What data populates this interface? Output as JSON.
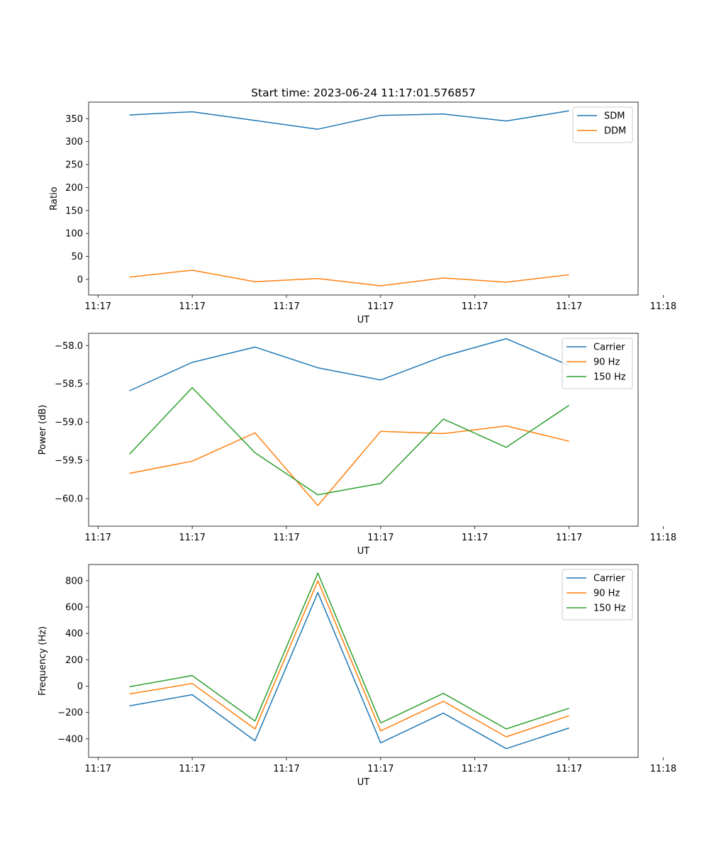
{
  "figure_title": "Start time: 2023-06-24 11:17:01.576857",
  "chart_data": [
    {
      "type": "line",
      "title": "Start time: 2023-06-24 11:17:01.576857",
      "xlabel": "UT",
      "ylabel": "Ratio",
      "x_tick_labels": [
        "11:17",
        "11:17",
        "11:17",
        "11:17",
        "11:17",
        "11:17",
        "11:18"
      ],
      "y_ticks": [
        0,
        50,
        100,
        150,
        200,
        250,
        300,
        350
      ],
      "ylim": [
        -34,
        386
      ],
      "xlim": [
        -0.15,
        8.6
      ],
      "legend_position": "top-right",
      "x": [
        0.5,
        1.5,
        2.5,
        3.5,
        4.5,
        5.5,
        6.5,
        7.5
      ],
      "series": [
        {
          "name": "SDM",
          "color": "#1f77b4",
          "values": [
            358,
            365,
            346,
            327,
            357,
            360,
            345,
            367
          ]
        },
        {
          "name": "DDM",
          "color": "#ff7f0e",
          "values": [
            5,
            20,
            -5,
            2,
            -14,
            3,
            -6,
            10
          ]
        }
      ]
    },
    {
      "type": "line",
      "title": "",
      "xlabel": "UT",
      "ylabel": "Power (dB)",
      "x_tick_labels": [
        "11:17",
        "11:17",
        "11:17",
        "11:17",
        "11:17",
        "11:17",
        "11:18"
      ],
      "y_ticks": [
        -60.0,
        -59.5,
        -59.0,
        -58.5,
        -58.0
      ],
      "y_tick_labels": [
        "−60.0",
        "−59.5",
        "−59.0",
        "−58.5",
        "−58.0"
      ],
      "ylim": [
        -60.36,
        -57.84
      ],
      "xlim": [
        -0.15,
        8.6
      ],
      "legend_position": "top-right",
      "x": [
        0.5,
        1.5,
        2.5,
        3.5,
        4.5,
        5.5,
        6.5,
        7.5
      ],
      "series": [
        {
          "name": "Carrier",
          "color": "#1f77b4",
          "values": [
            -58.59,
            -58.22,
            -58.02,
            -58.29,
            -58.45,
            -58.14,
            -57.91,
            -58.26
          ]
        },
        {
          "name": "90 Hz",
          "color": "#ff7f0e",
          "values": [
            -59.67,
            -59.51,
            -59.14,
            -60.09,
            -59.12,
            -59.15,
            -59.05,
            -59.25
          ]
        },
        {
          "name": "150 Hz",
          "color": "#2ca02c",
          "values": [
            -59.42,
            -58.55,
            -59.4,
            -59.95,
            -59.8,
            -58.96,
            -59.33,
            -58.78
          ]
        }
      ]
    },
    {
      "type": "line",
      "title": "",
      "xlabel": "UT",
      "ylabel": "Frequency (Hz)",
      "x_tick_labels": [
        "11:17",
        "11:17",
        "11:17",
        "11:17",
        "11:17",
        "11:17",
        "11:18"
      ],
      "y_ticks": [
        -400,
        -200,
        0,
        200,
        400,
        600,
        800
      ],
      "y_tick_labels": [
        "−400",
        "−200",
        "0",
        "200",
        "400",
        "600",
        "800"
      ],
      "ylim": [
        -541,
        923
      ],
      "xlim": [
        -0.15,
        8.6
      ],
      "legend_position": "top-right",
      "x": [
        0.5,
        1.5,
        2.5,
        3.5,
        4.5,
        5.5,
        6.5,
        7.5
      ],
      "series": [
        {
          "name": "Carrier",
          "color": "#1f77b4",
          "values": [
            -150,
            -65,
            -415,
            710,
            -430,
            -205,
            -475,
            -318
          ]
        },
        {
          "name": "90 Hz",
          "color": "#ff7f0e",
          "values": [
            -60,
            20,
            -325,
            800,
            -340,
            -115,
            -385,
            -225
          ]
        },
        {
          "name": "150 Hz",
          "color": "#2ca02c",
          "values": [
            -5,
            80,
            -265,
            858,
            -280,
            -55,
            -325,
            -168
          ]
        }
      ]
    }
  ]
}
